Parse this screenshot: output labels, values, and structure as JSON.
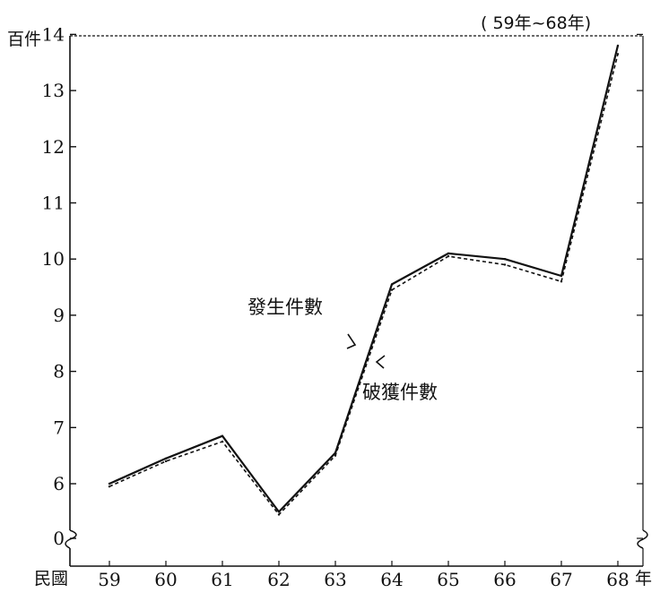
{
  "chart_data": {
    "type": "line",
    "y_unit_label": "百件",
    "x_prefix_label": "民國",
    "x_suffix_label": "年",
    "period_label": "( 59年~68年)",
    "x": [
      "59",
      "60",
      "61",
      "62",
      "63",
      "64",
      "65",
      "66",
      "67",
      "68"
    ],
    "y_ticks": [
      0,
      6,
      7,
      8,
      9,
      10,
      11,
      12,
      13,
      14
    ],
    "axis_break": true,
    "series": [
      {
        "name": "發生件數",
        "style": "solid",
        "color": "#111111",
        "values": [
          6.0,
          6.45,
          6.85,
          5.5,
          6.55,
          9.55,
          10.1,
          10.0,
          9.7,
          13.8
        ]
      },
      {
        "name": "破獲件數",
        "style": "dashed",
        "color": "#111111",
        "values": [
          5.95,
          6.4,
          6.75,
          5.45,
          6.5,
          9.45,
          10.05,
          9.9,
          9.6,
          13.65
        ]
      }
    ]
  }
}
